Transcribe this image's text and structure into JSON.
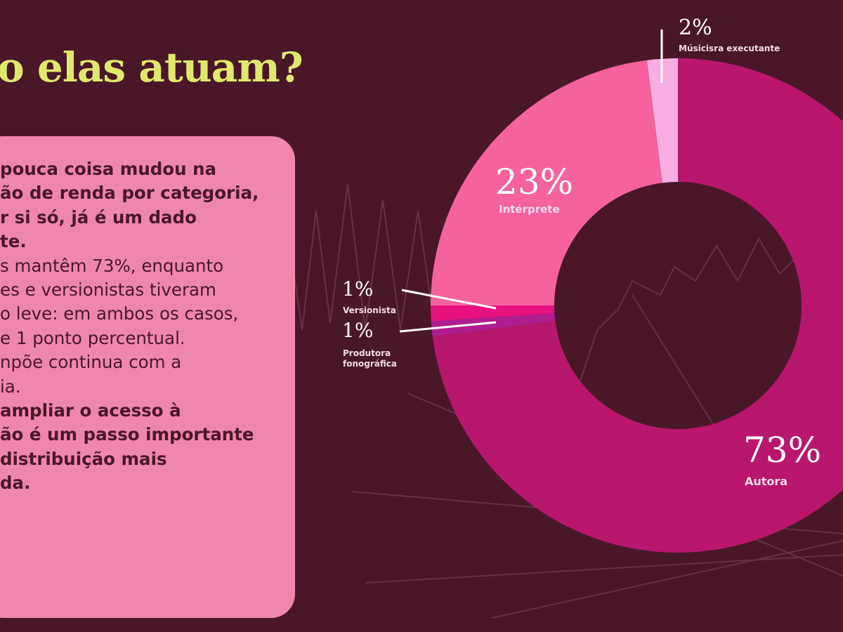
{
  "title": "o elas atuam?",
  "text_box": {
    "lines": [
      {
        "text": " pouca coisa mudou na",
        "bold": true
      },
      {
        "text": "ão de renda por categoria,",
        "bold": true
      },
      {
        "text": "r si só, já é um dado",
        "bold": true
      },
      {
        "text": "te.",
        "bold": true
      },
      {
        "text": "s mantêm 73%, enquanto",
        "bold": false
      },
      {
        "text": "es e versionistas tiveram",
        "bold": false
      },
      {
        "text": "o leve: em ambos os casos,",
        "bold": false
      },
      {
        "text": "e 1 ponto percentual.",
        "bold": false
      },
      {
        "text": "npõe continua com a",
        "bold": false
      },
      {
        "text": "ia.",
        "bold": false
      },
      {
        "text": "ampliar o acesso à",
        "bold": true
      },
      {
        "text": "ão é um passo importante",
        "bold": true
      },
      {
        "text": " distribuição mais",
        "bold": true
      },
      {
        "text": "da.",
        "bold": true
      }
    ]
  },
  "chart_data": {
    "type": "pie",
    "variant": "donut",
    "start": "top",
    "direction": "clockwise",
    "slices": [
      {
        "label": "Autora",
        "value": 73,
        "display": "73%",
        "color": "#b8176c"
      },
      {
        "label": "Produtora fonográfica",
        "value": 1,
        "display": "1%",
        "color": "#b21c92"
      },
      {
        "label": "Versionista",
        "value": 1,
        "display": "1%",
        "color": "#e6117f"
      },
      {
        "label": "Intérprete",
        "value": 23,
        "display": "23%",
        "color": "#f5629d"
      },
      {
        "label": "Músicisra executante",
        "value": 2,
        "display": "2%",
        "color": "#f8aee0"
      }
    ]
  },
  "colors": {
    "background": "#4a1729",
    "title": "#dfe96c",
    "box": "#ef86ae"
  }
}
